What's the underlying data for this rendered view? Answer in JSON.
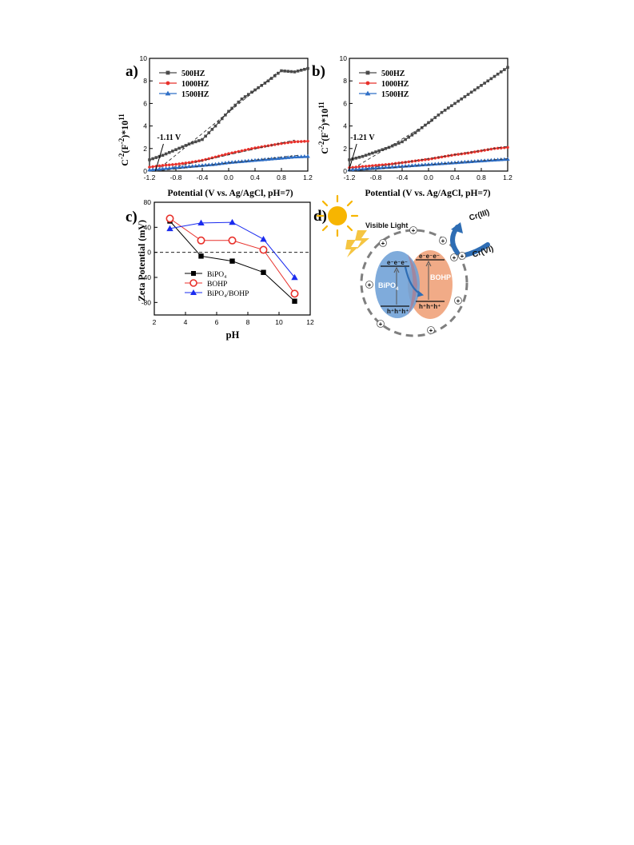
{
  "chart_data": [
    {
      "panel": "a)",
      "type": "line",
      "xlabel": "Potential (V vs. Ag/AgCl, pH=7)",
      "ylabel_parts": [
        "C",
        "-2",
        "(F",
        "-2",
        ")*10",
        "11"
      ],
      "xlim": [
        -1.2,
        1.2
      ],
      "ylim": [
        0,
        10
      ],
      "xticks": [
        "-1.2",
        "-0.8",
        "-0.4",
        "0.0",
        "0.4",
        "0.8",
        "1.2"
      ],
      "yticks": [
        "0",
        "2",
        "4",
        "6",
        "8",
        "10"
      ],
      "legend_position": "top-left",
      "annotation": "-1.11 V",
      "annotation_x": -1.11,
      "series": [
        {
          "name": "500HZ",
          "color": "#4a4a4a",
          "marker": "square",
          "x": [
            -1.2,
            -1.0,
            -0.8,
            -0.6,
            -0.4,
            -0.2,
            0.0,
            0.2,
            0.4,
            0.6,
            0.8,
            1.0,
            1.2
          ],
          "y": [
            1.0,
            1.4,
            1.9,
            2.4,
            2.8,
            4.0,
            5.3,
            6.4,
            7.2,
            8.0,
            8.9,
            8.8,
            9.1
          ],
          "fit": [
            [
              -1.1,
              0.0
            ],
            [
              0.75,
              8.8
            ]
          ]
        },
        {
          "name": "1000HZ",
          "color": "#e8312b",
          "marker": "circle",
          "x": [
            -1.2,
            -1.0,
            -0.8,
            -0.6,
            -0.4,
            -0.2,
            0.0,
            0.2,
            0.4,
            0.6,
            0.8,
            1.0,
            1.2
          ],
          "y": [
            0.35,
            0.5,
            0.6,
            0.75,
            0.95,
            1.25,
            1.55,
            1.8,
            2.05,
            2.25,
            2.45,
            2.6,
            2.65
          ],
          "fit": [
            [
              -1.1,
              0.0
            ],
            [
              1.0,
              2.75
            ]
          ]
        },
        {
          "name": "1500HZ",
          "color": "#2f6fc6",
          "marker": "triangle",
          "x": [
            -1.2,
            -1.0,
            -0.8,
            -0.6,
            -0.4,
            -0.2,
            0.0,
            0.2,
            0.4,
            0.6,
            0.8,
            1.0,
            1.2
          ],
          "y": [
            0.1,
            0.2,
            0.3,
            0.4,
            0.5,
            0.6,
            0.75,
            0.85,
            0.95,
            1.05,
            1.15,
            1.25,
            1.3
          ],
          "fit": [
            [
              -1.1,
              0.0
            ],
            [
              1.05,
              1.4
            ]
          ]
        }
      ]
    },
    {
      "panel": "b)",
      "type": "line",
      "xlabel": "Potential (V vs. Ag/AgCl, pH=7)",
      "ylabel_parts": [
        "C",
        "-2",
        "(F",
        "-2",
        ")*10",
        "11"
      ],
      "xlim": [
        -1.2,
        1.2
      ],
      "ylim": [
        0,
        10
      ],
      "xticks": [
        "-1.2",
        "-0.8",
        "-0.4",
        "0.0",
        "0.4",
        "0.8",
        "1.2"
      ],
      "yticks": [
        "0",
        "2",
        "4",
        "6",
        "8",
        "10"
      ],
      "legend_position": "top-left",
      "annotation": "-1.21 V",
      "annotation_x": -1.21,
      "series": [
        {
          "name": "500HZ",
          "color": "#4a4a4a",
          "marker": "square",
          "x": [
            -1.2,
            -1.0,
            -0.8,
            -0.6,
            -0.4,
            -0.2,
            0.0,
            0.2,
            0.4,
            0.6,
            0.8,
            1.0,
            1.2
          ],
          "y": [
            1.0,
            1.3,
            1.7,
            2.1,
            2.6,
            3.4,
            4.3,
            5.2,
            6.0,
            6.8,
            7.6,
            8.4,
            9.2
          ],
          "fit": [
            [
              -1.21,
              0.0
            ],
            [
              0.1,
              4.6
            ]
          ]
        },
        {
          "name": "1000HZ",
          "color": "#e8312b",
          "marker": "circle",
          "x": [
            -1.2,
            -1.0,
            -0.8,
            -0.6,
            -0.4,
            -0.2,
            0.0,
            0.2,
            0.4,
            0.6,
            0.8,
            1.0,
            1.2
          ],
          "y": [
            0.3,
            0.4,
            0.5,
            0.6,
            0.75,
            0.9,
            1.05,
            1.25,
            1.45,
            1.6,
            1.8,
            2.0,
            2.1
          ],
          "fit": [
            [
              -1.21,
              0.0
            ],
            [
              1.2,
              2.2
            ]
          ]
        },
        {
          "name": "1500HZ",
          "color": "#2f6fc6",
          "marker": "triangle",
          "x": [
            -1.2,
            -1.0,
            -0.8,
            -0.6,
            -0.4,
            -0.2,
            0.0,
            0.2,
            0.4,
            0.6,
            0.8,
            1.0,
            1.2
          ],
          "y": [
            0.1,
            0.18,
            0.26,
            0.34,
            0.42,
            0.5,
            0.58,
            0.66,
            0.74,
            0.82,
            0.9,
            0.98,
            1.05
          ],
          "fit": [
            [
              -1.21,
              0.0
            ],
            [
              1.2,
              1.1
            ]
          ]
        }
      ]
    },
    {
      "panel": "c)",
      "type": "line",
      "xlabel": "pH",
      "ylabel": "Zeta Potential (mV)",
      "xlim": [
        2,
        12
      ],
      "ylim": [
        -100,
        80
      ],
      "xticks": [
        "2",
        "4",
        "6",
        "8",
        "10",
        "12"
      ],
      "yticks": [
        "80",
        "40",
        "0",
        "-40",
        "-80"
      ],
      "legend_position": "bottom-left",
      "series": [
        {
          "name": "BiPO₄",
          "color": "#000000",
          "marker": "square",
          "x": [
            3,
            5,
            7,
            9,
            11
          ],
          "y": [
            50,
            -6,
            -14,
            -32,
            -78
          ]
        },
        {
          "name": "BOHP",
          "color": "#e8312b",
          "marker": "circle-open",
          "x": [
            3,
            5,
            7,
            9,
            11
          ],
          "y": [
            54,
            19,
            19,
            4,
            -66
          ]
        },
        {
          "name": "BiPO₄/BOHP",
          "color": "#1a2bef",
          "marker": "triangle",
          "x": [
            3,
            5,
            7,
            9,
            11
          ],
          "y": [
            38,
            47,
            48,
            21,
            -40
          ]
        }
      ]
    }
  ],
  "diagram_d": {
    "panel": "d)",
    "visible_light": "Visible Light",
    "cr3": "Cr(III)",
    "cr6": "Cr(VI)",
    "bipo4": "BiPO",
    "bipo4_sub": "4",
    "bohp": "BOHP",
    "electrons_left": "e⁻e⁻e⁻",
    "electrons_right": "e⁻e⁻e⁻",
    "holes_left": "h⁺h⁺h⁺",
    "holes_right": "h⁺h⁺h⁺",
    "plus": "+",
    "colors": {
      "bipo4": "#6d9fd6",
      "bohp": "#f0a27a",
      "sun": "#f7b500",
      "arrow": "#2e6db4",
      "dashed_circle": "#7f7f7f"
    }
  }
}
